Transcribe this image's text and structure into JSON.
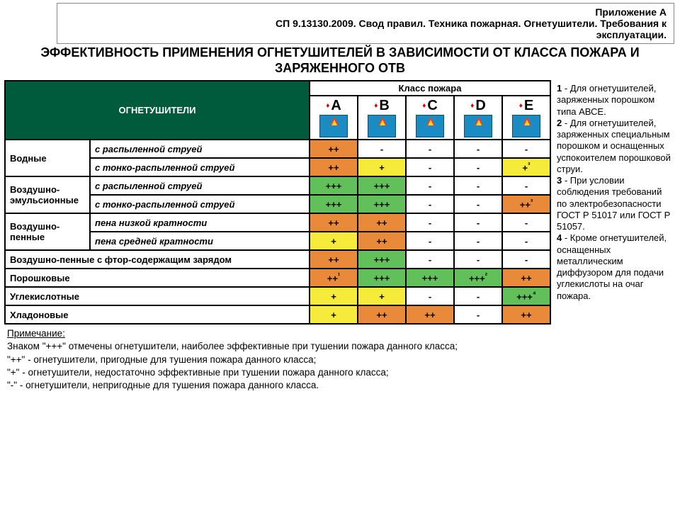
{
  "header": {
    "line1": "Приложение А",
    "line2": "СП 9.13130.2009. Свод правил. Техника пожарная. Огнетушители. Требования к",
    "line3": "эксплуатации."
  },
  "title": "ЭФФЕКТИВНОСТЬ ПРИМЕНЕНИЯ ОГНЕТУШИТЕЛЕЙ В ЗАВИСИМОСТИ ОТ КЛАССА ПОЖАРА И ЗАРЯЖЕННОГО ОТВ",
  "table": {
    "extinguishers_label": "ОГНЕТУШИТЕЛИ",
    "klass_label": "Класс пожара",
    "fire_classes": [
      "A",
      "B",
      "C",
      "D",
      "E"
    ],
    "colors": {
      "or": "#e98a3a",
      "gr": "#62c05a",
      "ye": "#f6ea3a",
      "wh": "#ffffff",
      "hdr_green": "#005a3c",
      "icon_bg": "#1b8bc4",
      "border": "#000000"
    },
    "groups": [
      {
        "name": "Водные",
        "rows": [
          {
            "sub": "с распыленной струей",
            "vals": [
              [
                "++",
                "or"
              ],
              [
                "-",
                "wh"
              ],
              [
                "-",
                "wh"
              ],
              [
                "-",
                "wh"
              ],
              [
                "-",
                "wh"
              ]
            ]
          },
          {
            "sub": "с тонко-распыленной струей",
            "vals": [
              [
                "++",
                "or"
              ],
              [
                "+",
                "ye"
              ],
              [
                "-",
                "wh"
              ],
              [
                "-",
                "wh"
              ],
              [
                "+³",
                "ye"
              ]
            ]
          }
        ]
      },
      {
        "name": "Воздушно-эмульсионные",
        "rows": [
          {
            "sub": "с распыленной струей",
            "vals": [
              [
                "+++",
                "gr"
              ],
              [
                "+++",
                "gr"
              ],
              [
                "-",
                "wh"
              ],
              [
                "-",
                "wh"
              ],
              [
                "-",
                "wh"
              ]
            ]
          },
          {
            "sub": "с тонко-распыленной струей",
            "vals": [
              [
                "+++",
                "gr"
              ],
              [
                "+++",
                "gr"
              ],
              [
                "-",
                "wh"
              ],
              [
                "-",
                "wh"
              ],
              [
                "++³",
                "or"
              ]
            ]
          }
        ]
      },
      {
        "name": "Воздушно-пенные",
        "rows": [
          {
            "sub": "пена низкой кратности",
            "vals": [
              [
                "++",
                "or"
              ],
              [
                "++",
                "or"
              ],
              [
                "-",
                "wh"
              ],
              [
                "-",
                "wh"
              ],
              [
                "-",
                "wh"
              ]
            ]
          },
          {
            "sub": "пена средней кратности",
            "vals": [
              [
                "+",
                "ye"
              ],
              [
                "++",
                "or"
              ],
              [
                "-",
                "wh"
              ],
              [
                "-",
                "wh"
              ],
              [
                "-",
                "wh"
              ]
            ]
          }
        ]
      }
    ],
    "full_rows": [
      {
        "name": "Воздушно-пенные с фтор-содержащим зарядом",
        "vals": [
          [
            "++",
            "or"
          ],
          [
            "+++",
            "gr"
          ],
          [
            "-",
            "wh"
          ],
          [
            "-",
            "wh"
          ],
          [
            "-",
            "wh"
          ]
        ]
      },
      {
        "name": "Порошковые",
        "vals": [
          [
            "++¹",
            "or"
          ],
          [
            "+++",
            "gr"
          ],
          [
            "+++",
            "gr"
          ],
          [
            "+++²",
            "gr"
          ],
          [
            "++",
            "or"
          ]
        ]
      },
      {
        "name": "Углекислотные",
        "vals": [
          [
            "+",
            "ye"
          ],
          [
            "+",
            "ye"
          ],
          [
            "-",
            "wh"
          ],
          [
            "-",
            "wh"
          ],
          [
            "+++⁴",
            "gr"
          ]
        ]
      },
      {
        "name": "Хладоновые",
        "vals": [
          [
            "+",
            "ye"
          ],
          [
            "++",
            "or"
          ],
          [
            "++",
            "or"
          ],
          [
            "-",
            "wh"
          ],
          [
            "++",
            "or"
          ]
        ]
      }
    ]
  },
  "legend": [
    {
      "num": "1",
      "text": "Для огнетушителей, заряженных порошком типа АВСЕ."
    },
    {
      "num": "2",
      "text": "Для огнетушителей, заряженных специальным порошком и оснащенных успокоителем порошковой струи."
    },
    {
      "num": "3",
      "text": "При условии соблюдения требований по электробезопасности ГОСТ Р 51017 или ГОСТ Р 51057."
    },
    {
      "num": "4",
      "text": "Кроме огнетушителей, оснащенных металлическим диффузором для подачи углекислоты на очаг пожара."
    }
  ],
  "footnote": {
    "title": "Примечание:",
    "lines": [
      "Знаком \"+++\" отмечены огнетушители, наиболее эффективные при тушении пожара данного класса;",
      "\"++\" - огнетушители, пригодные для тушения пожара данного класса;",
      "\"+\" - огнетушители, недостаточно эффективные при тушении пожара данного класса;",
      "\"-\" - огнетушители, непригодные для тушения пожара данного класса."
    ]
  }
}
